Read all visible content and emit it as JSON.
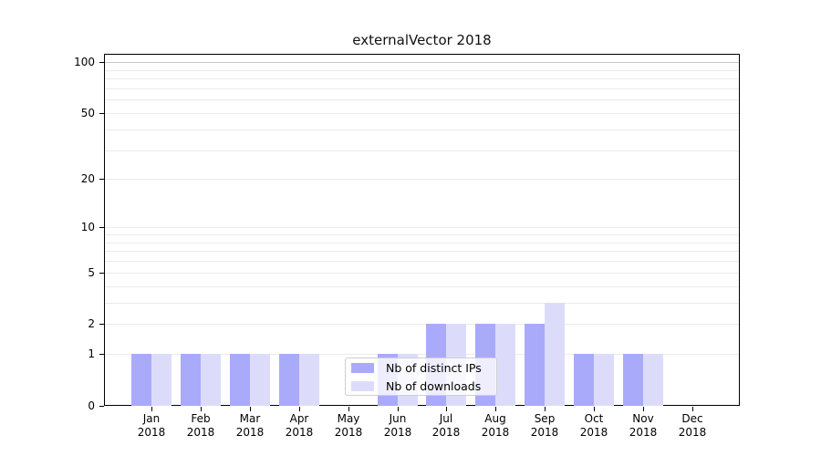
{
  "chart_data": {
    "type": "bar",
    "title": "externalVector 2018",
    "categories": [
      "Jan",
      "Feb",
      "Mar",
      "Apr",
      "May",
      "Jun",
      "Jul",
      "Aug",
      "Sep",
      "Oct",
      "Nov",
      "Dec"
    ],
    "category_year": "2018",
    "series": [
      {
        "name": "Nb of distinct IPs",
        "color": "#aaaafa",
        "values": [
          1,
          1,
          1,
          1,
          0,
          1,
          2,
          2,
          2,
          1,
          1,
          0
        ]
      },
      {
        "name": "Nb of downloads",
        "color": "#dcdcfa",
        "values": [
          1,
          1,
          1,
          1,
          0,
          1,
          2,
          2,
          3,
          1,
          1,
          0
        ]
      }
    ],
    "xlabel": "",
    "ylabel": "",
    "y_scale": "log1p",
    "ylim": [
      0,
      112
    ],
    "y_ticks": [
      0,
      1,
      2,
      5,
      10,
      20,
      50,
      100
    ],
    "gridline_values": [
      1,
      2,
      3,
      4,
      5,
      6,
      7,
      8,
      9,
      10,
      20,
      30,
      40,
      50,
      60,
      70,
      80,
      90,
      100
    ],
    "grid_color_minor": "#ebebeb",
    "grid_color_top": "#c8c8c8",
    "legend_position": "bottom-center"
  }
}
